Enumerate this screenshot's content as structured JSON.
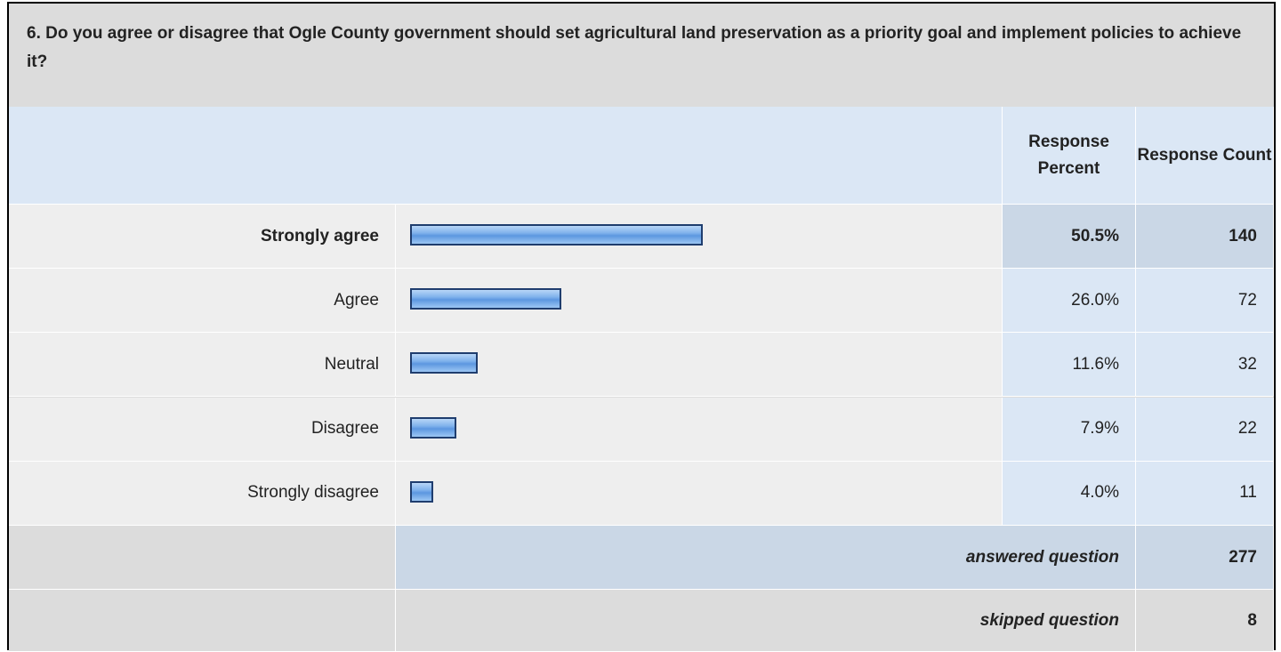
{
  "question": "6. Do you agree or disagree that Ogle County government should set agricultural land preservation as a priority goal and implement policies to achieve it?",
  "header": {
    "percent": "Response Percent",
    "count": "Response Count"
  },
  "table": {
    "rows": [
      {
        "label": "Strongly agree",
        "percent": 50.5,
        "percent_label": "50.5%",
        "count": 140
      },
      {
        "label": "Agree",
        "percent": 26.0,
        "percent_label": "26.0%",
        "count": 72
      },
      {
        "label": "Neutral",
        "percent": 11.6,
        "percent_label": "11.6%",
        "count": 32
      },
      {
        "label": "Disagree",
        "percent": 7.9,
        "percent_label": "7.9%",
        "count": 22
      },
      {
        "label": "Strongly disagree",
        "percent": 4.0,
        "percent_label": "4.0%",
        "count": 11
      }
    ]
  },
  "summary": {
    "answered": {
      "label": "answered question",
      "count": 277
    },
    "skipped": {
      "label": "skipped question",
      "count": 8
    }
  }
}
